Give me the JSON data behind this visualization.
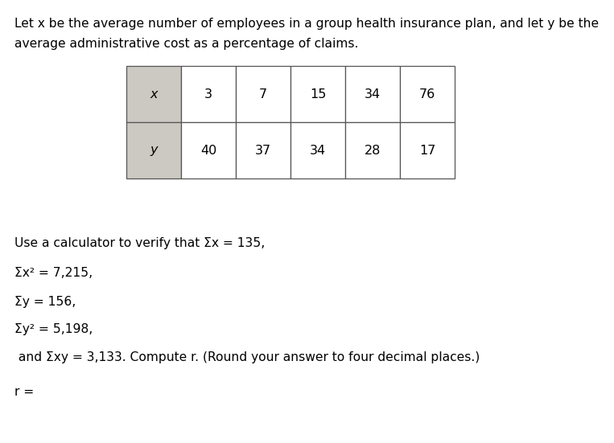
{
  "bg_color": "#ffffff",
  "intro_text_line1": "Let x be the average number of employees in a group health insurance plan, and let y be the",
  "intro_text_line2": "average administrative cost as a percentage of claims.",
  "table_x_label": "x",
  "table_y_label": "y",
  "x_values": [
    "3",
    "7",
    "15",
    "34",
    "76"
  ],
  "y_values": [
    "40",
    "37",
    "34",
    "28",
    "17"
  ],
  "header_bg": "#ccc8c2",
  "cell_bg": "#ffffff",
  "border_color": "#555555",
  "text_color": "#000000",
  "body_line1": "Use a calculator to verify that Σx = 135,",
  "body_line2": "Σx² = 7,215,",
  "body_line3": "Σy = 156,",
  "body_line4": "Σy² = 5,198,",
  "body_line5": " and Σxy = 3,133. Compute r. (Round your answer to four decimal places.)",
  "body_line6": "r =",
  "font_size_intro": 11.2,
  "font_size_table": 11.5,
  "font_size_body": 11.2
}
